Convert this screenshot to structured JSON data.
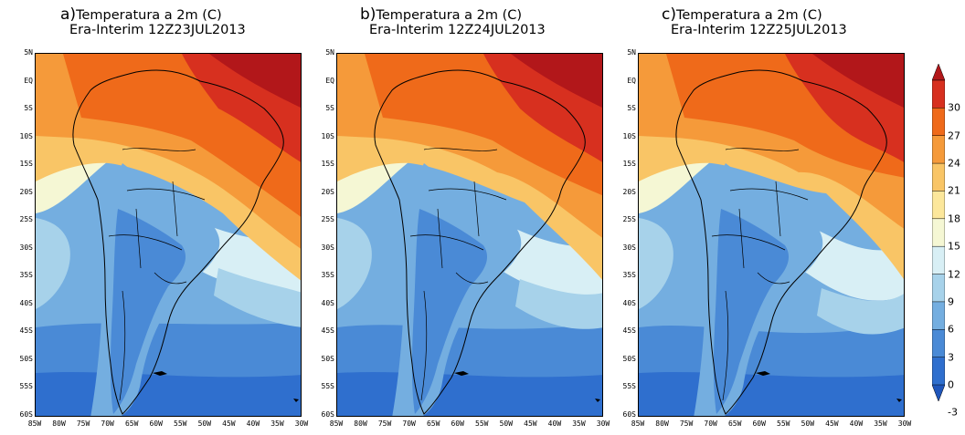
{
  "panels": [
    {
      "letter": "a)",
      "title": "Temperatura a 2m (C)",
      "subtitle": "Era-Interim 12Z23JUL2013"
    },
    {
      "letter": "b)",
      "title": "Temperatura a 2m (C)",
      "subtitle": "Era-Interim 12Z24JUL2013"
    },
    {
      "letter": "c)",
      "title": "Temperatura a 2m (C)",
      "subtitle": "Era-Interim 12Z25JUL2013"
    }
  ],
  "lat_labels": [
    "5N",
    "EQ",
    "5S",
    "10S",
    "15S",
    "20S",
    "25S",
    "30S",
    "35S",
    "40S",
    "45S",
    "50S",
    "55S",
    "60S"
  ],
  "lon_labels": [
    "85W",
    "80W",
    "75W",
    "70W",
    "65W",
    "60W",
    "55W",
    "50W",
    "45W",
    "40W",
    "35W",
    "30W"
  ],
  "colorbar": {
    "ticks": [
      "30",
      "27",
      "24",
      "21",
      "18",
      "15",
      "12",
      "9",
      "6",
      "3",
      "0",
      "-3"
    ],
    "colors": [
      "#b2171a",
      "#d7301f",
      "#ef6a1a",
      "#f59a3a",
      "#f9c566",
      "#fce79b",
      "#f5f7d4",
      "#d8eff5",
      "#a7d2ea",
      "#74aee0",
      "#4a8ad6",
      "#2f6fce",
      "#1f56bb"
    ]
  }
}
